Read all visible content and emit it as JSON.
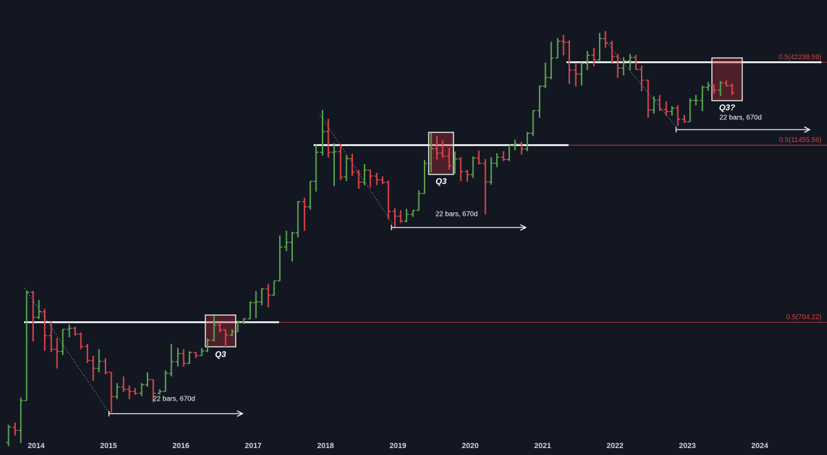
{
  "chart_data": {
    "type": "ohlc",
    "yscale": "log",
    "up_color": "#5aa64f",
    "down_color": "#e0454a",
    "level_color": "#d9423f",
    "xlim": [
      2013.5,
      2024.93
    ],
    "ylim": [
      87,
      112500
    ],
    "xticks": [
      2014,
      2015,
      2016,
      2017,
      2018,
      2019,
      2020,
      2021,
      2022,
      2023,
      2024
    ],
    "x": [
      2013.58,
      2013.67,
      2013.75,
      2013.83,
      2013.92,
      2014,
      2014.08,
      2014.17,
      2014.25,
      2014.33,
      2014.42,
      2014.5,
      2014.58,
      2014.67,
      2014.75,
      2014.83,
      2014.92,
      2015,
      2015.08,
      2015.17,
      2015.25,
      2015.33,
      2015.42,
      2015.5,
      2015.58,
      2015.67,
      2015.75,
      2015.83,
      2015.92,
      2016,
      2016.08,
      2016.17,
      2016.25,
      2016.33,
      2016.42,
      2016.5,
      2016.58,
      2016.67,
      2016.75,
      2016.83,
      2016.92,
      2017,
      2017.08,
      2017.17,
      2017.25,
      2017.33,
      2017.42,
      2017.5,
      2017.58,
      2017.67,
      2017.75,
      2017.83,
      2017.92,
      2018,
      2018.08,
      2018.17,
      2018.25,
      2018.33,
      2018.42,
      2018.5,
      2018.58,
      2018.67,
      2018.75,
      2018.83,
      2018.92,
      2019,
      2019.08,
      2019.17,
      2019.25,
      2019.33,
      2019.42,
      2019.5,
      2019.58,
      2019.67,
      2019.75,
      2019.83,
      2019.92,
      2020,
      2020.08,
      2020.17,
      2020.25,
      2020.33,
      2020.42,
      2020.5,
      2020.58,
      2020.67,
      2020.75,
      2020.83,
      2020.92,
      2021,
      2021.08,
      2021.17,
      2021.25,
      2021.33,
      2021.42,
      2021.5,
      2021.58,
      2021.67,
      2021.75,
      2021.83,
      2021.92,
      2022,
      2022.08,
      2022.17,
      2022.25,
      2022.33,
      2022.42,
      2022.5,
      2022.58,
      2022.67,
      2022.75,
      2022.83,
      2022.92,
      2023,
      2023.08,
      2023.17,
      2023.25,
      2023.33,
      2023.42,
      2023.5,
      2023.58
    ],
    "open": [
      106,
      135,
      128,
      205,
      1130,
      760,
      830,
      570,
      460,
      445,
      630,
      640,
      585,
      480,
      385,
      340,
      380,
      320,
      218,
      254,
      245,
      237,
      230,
      263,
      285,
      230,
      237,
      315,
      378,
      430,
      368,
      437,
      416,
      448,
      531,
      673,
      624,
      575,
      608,
      700,
      742,
      960,
      970,
      1190,
      1080,
      1350,
      2300,
      2480,
      2875,
      4700,
      4340,
      6470,
      10230,
      14160,
      10220,
      10330,
      6930,
      9240,
      7490,
      6390,
      7730,
      7030,
      6630,
      6370,
      4040,
      3740,
      3460,
      3850,
      4100,
      5350,
      8560,
      10820,
      10080,
      9630,
      8290,
      9200,
      7560,
      7190,
      9350,
      8600,
      6410,
      8620,
      9450,
      9140,
      11350,
      11650,
      10780,
      13800,
      19700,
      28990,
      33140,
      45140,
      58800,
      57750,
      37300,
      35040,
      41460,
      47130,
      43820,
      61300,
      57000,
      46300,
      38500,
      43190,
      45540,
      37700,
      31800,
      19930,
      23300,
      20050,
      19430,
      20500,
      17170,
      16550,
      23140,
      23150,
      28480,
      29250,
      27220,
      30480,
      29230
    ],
    "high": [
      140,
      145,
      215,
      1160,
      1150,
      1000,
      870,
      710,
      550,
      630,
      680,
      655,
      600,
      500,
      415,
      460,
      400,
      320,
      270,
      300,
      260,
      250,
      270,
      320,
      285,
      245,
      330,
      500,
      470,
      460,
      445,
      440,
      470,
      545,
      780,
      700,
      625,
      630,
      720,
      750,
      975,
      1150,
      1200,
      1290,
      1350,
      2760,
      2980,
      2920,
      4740,
      5000,
      6470,
      11500,
      19890,
      17300,
      11800,
      11700,
      9760,
      10000,
      7760,
      8500,
      7760,
      7400,
      6990,
      6550,
      4240,
      4110,
      4200,
      4100,
      5620,
      9080,
      13880,
      13200,
      12330,
      10950,
      10370,
      9500,
      7750,
      9580,
      10500,
      9200,
      9470,
      10080,
      10400,
      11450,
      12480,
      12070,
      14100,
      19860,
      29300,
      41950,
      58350,
      61780,
      64900,
      59500,
      41300,
      42300,
      50500,
      52900,
      67000,
      69000,
      59050,
      48000,
      45800,
      48200,
      47450,
      40000,
      31900,
      24700,
      25200,
      22800,
      21100,
      21450,
      18400,
      23950,
      25250,
      29200,
      31000,
      29800,
      31400,
      31800,
      30200
    ],
    "low": [
      100,
      118,
      105,
      205,
      520,
      740,
      450,
      440,
      340,
      420,
      555,
      570,
      460,
      370,
      280,
      320,
      310,
      170,
      210,
      235,
      210,
      225,
      220,
      255,
      200,
      225,
      235,
      300,
      350,
      350,
      365,
      400,
      414,
      440,
      520,
      600,
      470,
      565,
      605,
      685,
      742,
      750,
      920,
      890,
      1070,
      1350,
      2150,
      1830,
      2670,
      2970,
      4150,
      5500,
      9720,
      9400,
      6000,
      6600,
      6500,
      7050,
      5750,
      6070,
      5880,
      6100,
      6200,
      3560,
      3150,
      3360,
      3400,
      3700,
      4070,
      5330,
      7450,
      9100,
      9400,
      7800,
      7300,
      6500,
      6430,
      6850,
      8450,
      3850,
      6150,
      8100,
      8900,
      8900,
      10550,
      9880,
      10400,
      13200,
      17600,
      28130,
      32300,
      45000,
      47000,
      30000,
      28800,
      29300,
      37300,
      39600,
      43300,
      53000,
      42000,
      33000,
      34300,
      37200,
      37600,
      26700,
      17600,
      18800,
      19600,
      18150,
      18200,
      15480,
      16300,
      16500,
      21400,
      19550,
      26900,
      25800,
      24800,
      28860,
      25200
    ],
    "close": [
      135,
      128,
      205,
      1130,
      760,
      830,
      570,
      460,
      445,
      630,
      640,
      585,
      480,
      385,
      340,
      380,
      320,
      218,
      254,
      245,
      237,
      230,
      263,
      285,
      230,
      237,
      315,
      378,
      430,
      368,
      437,
      416,
      448,
      531,
      673,
      624,
      575,
      608,
      700,
      742,
      960,
      970,
      1190,
      1080,
      1350,
      2300,
      2480,
      2875,
      4700,
      4340,
      6470,
      10230,
      14160,
      10220,
      10330,
      6930,
      9240,
      7490,
      6390,
      7730,
      7030,
      6630,
      6370,
      4040,
      3740,
      3460,
      3850,
      4100,
      5350,
      8560,
      10820,
      10080,
      9630,
      8290,
      9200,
      7560,
      7190,
      9350,
      8600,
      6410,
      8620,
      9450,
      9140,
      11350,
      11650,
      10780,
      13800,
      19700,
      28990,
      33140,
      45140,
      58800,
      57750,
      37300,
      35040,
      41460,
      47130,
      43820,
      61300,
      57000,
      46300,
      38500,
      43190,
      45540,
      37700,
      31800,
      19930,
      23300,
      20050,
      19430,
      20500,
      17170,
      16550,
      23140,
      23150,
      28480,
      29250,
      27220,
      30480,
      29230,
      26100
    ],
    "levels": [
      {
        "value": 704.22,
        "label": "0.5(704.22)"
      },
      {
        "value": 11455.56,
        "label": "0.5(11455.56)"
      },
      {
        "value": 42238.59,
        "label": "0.5(42238.59)"
      }
    ],
    "annotations": {
      "boxes": [
        "Q3",
        "Q3",
        "Q3?"
      ],
      "ranges": [
        "22 bars, 670d",
        "22 bars, 670d",
        "22 bars, 670d"
      ]
    }
  }
}
